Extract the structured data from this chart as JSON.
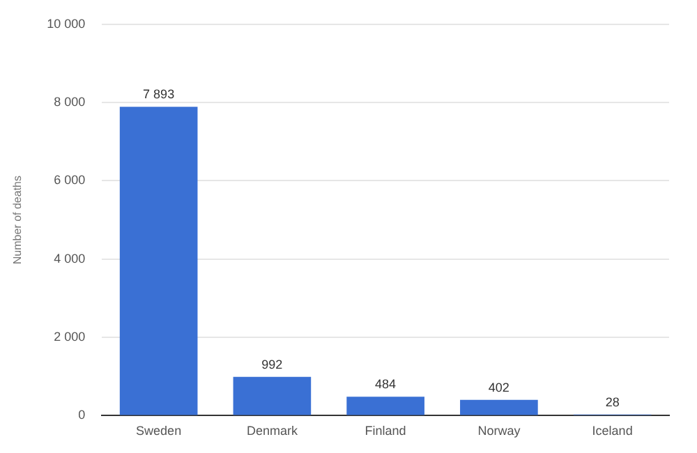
{
  "chart_data": {
    "type": "bar",
    "ylabel": "Number of deaths",
    "categories": [
      "Sweden",
      "Denmark",
      "Finland",
      "Norway",
      "Iceland"
    ],
    "values": [
      7893,
      992,
      484,
      402,
      28
    ],
    "value_labels": [
      "7 893",
      "992",
      "484",
      "402",
      "28"
    ],
    "color": "#3a70d4",
    "ylim": [
      0,
      10000
    ],
    "yticks": [
      {
        "value": 0,
        "label": "0"
      },
      {
        "value": 2000,
        "label": "2 000"
      },
      {
        "value": 4000,
        "label": "4 000"
      },
      {
        "value": 6000,
        "label": "6 000"
      },
      {
        "value": 8000,
        "label": "8 000"
      },
      {
        "value": 10000,
        "label": "10 000"
      }
    ],
    "grid": "y",
    "legend": false
  }
}
